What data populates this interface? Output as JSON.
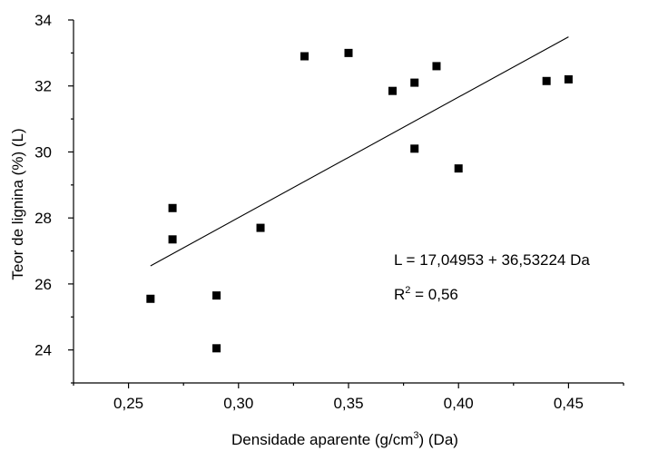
{
  "chart_data": {
    "type": "scatter",
    "xlabel_pre": "Densidade aparente (g/cm",
    "xlabel_sup": "3",
    "xlabel_post": ") (Da)",
    "ylabel": "Teor de lignina (%) (L)",
    "xlim": [
      0.225,
      0.475
    ],
    "ylim": [
      23,
      34
    ],
    "xticks": [
      {
        "value": 0.25,
        "label": "0,25"
      },
      {
        "value": 0.3,
        "label": "0,30"
      },
      {
        "value": 0.35,
        "label": "0,35"
      },
      {
        "value": 0.4,
        "label": "0,40"
      },
      {
        "value": 0.45,
        "label": "0,45"
      }
    ],
    "yticks": [
      {
        "value": 24,
        "label": "24"
      },
      {
        "value": 26,
        "label": "26"
      },
      {
        "value": 28,
        "label": "28"
      },
      {
        "value": 30,
        "label": "30"
      },
      {
        "value": 32,
        "label": "32"
      },
      {
        "value": 34,
        "label": "34"
      }
    ],
    "points": [
      {
        "x": 0.26,
        "y": 25.55
      },
      {
        "x": 0.27,
        "y": 28.3
      },
      {
        "x": 0.27,
        "y": 27.35
      },
      {
        "x": 0.29,
        "y": 25.65
      },
      {
        "x": 0.29,
        "y": 24.05
      },
      {
        "x": 0.31,
        "y": 27.7
      },
      {
        "x": 0.33,
        "y": 32.9
      },
      {
        "x": 0.35,
        "y": 33.0
      },
      {
        "x": 0.37,
        "y": 31.85
      },
      {
        "x": 0.38,
        "y": 32.1
      },
      {
        "x": 0.38,
        "y": 30.1
      },
      {
        "x": 0.39,
        "y": 32.6
      },
      {
        "x": 0.4,
        "y": 29.5
      },
      {
        "x": 0.44,
        "y": 32.15
      },
      {
        "x": 0.45,
        "y": 32.2
      }
    ],
    "regression": {
      "intercept": 17.04953,
      "slope": 36.53224,
      "x_range": [
        0.26,
        0.45
      ]
    },
    "annotations": {
      "equation": "L = 17,04953 + 36,53224 Da",
      "r2_pre": "R",
      "r2_sup": "2",
      "r2_post": " = 0,56"
    }
  }
}
